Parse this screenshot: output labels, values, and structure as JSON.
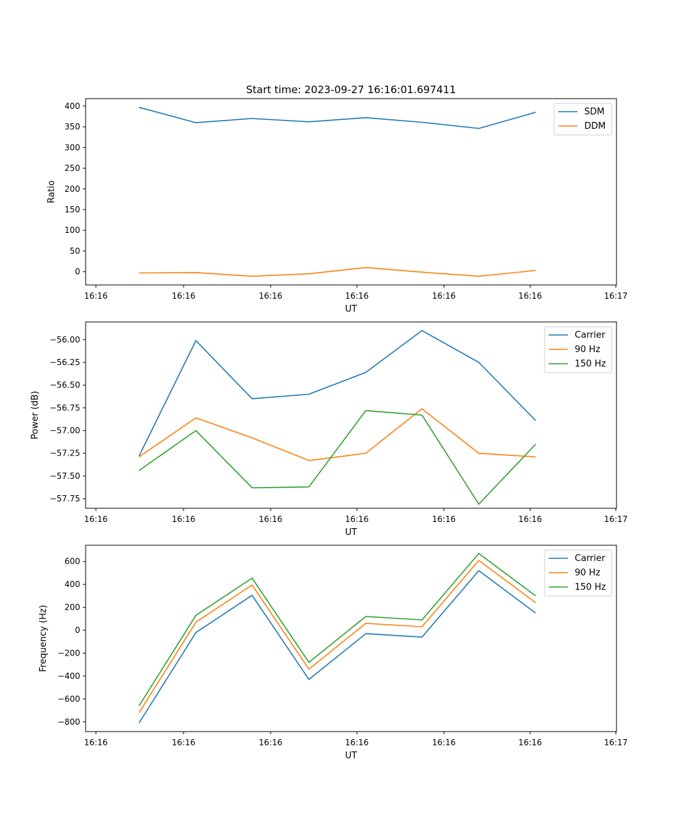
{
  "chart_data": [
    {
      "type": "line",
      "title": "Start time: 2023-09-27 16:16:01.697411",
      "xlabel": "UT",
      "ylabel": "Ratio",
      "x_ticks": [
        "16:16",
        "16:16",
        "16:16",
        "16:16",
        "16:16",
        "16:16",
        "16:16",
        "16:17"
      ],
      "y_ticks": [
        "0",
        "50",
        "100",
        "150",
        "200",
        "250",
        "300",
        "350",
        "400"
      ],
      "ylim": [
        -32,
        418
      ],
      "legend": "top-right",
      "series": [
        {
          "name": "SDM",
          "color": "#1f77b4",
          "values": [
            397,
            360,
            370,
            362,
            372,
            361,
            346,
            385
          ]
        },
        {
          "name": "DDM",
          "color": "#ff7f0e",
          "values": [
            -3,
            -2,
            -11,
            -5,
            10,
            -1,
            -11,
            3
          ]
        }
      ]
    },
    {
      "type": "line",
      "title": "",
      "xlabel": "UT",
      "ylabel": "Power (dB)",
      "x_ticks": [
        "16:16",
        "16:16",
        "16:16",
        "16:16",
        "16:16",
        "16:16",
        "16:16",
        "16:17"
      ],
      "y_ticks": [
        "−57.75",
        "−57.50",
        "−57.25",
        "−57.00",
        "−56.75",
        "−56.50",
        "−56.25",
        "−56.00"
      ],
      "ylim": [
        -57.855,
        -55.805
      ],
      "legend": "top-right",
      "series": [
        {
          "name": "Carrier",
          "color": "#1f77b4",
          "values": [
            -57.28,
            -56.01,
            -56.65,
            -56.6,
            -56.36,
            -55.9,
            -56.25,
            -56.89
          ]
        },
        {
          "name": "90 Hz",
          "color": "#ff7f0e",
          "values": [
            -57.29,
            -56.86,
            -57.08,
            -57.33,
            -57.25,
            -56.76,
            -57.25,
            -57.29
          ]
        },
        {
          "name": "150 Hz",
          "color": "#2ca02c",
          "values": [
            -57.44,
            -57.0,
            -57.63,
            -57.62,
            -56.78,
            -56.83,
            -57.81,
            -57.15
          ]
        }
      ]
    },
    {
      "type": "line",
      "title": "",
      "xlabel": "UT",
      "ylabel": "Frequency (Hz)",
      "x_ticks": [
        "16:16",
        "16:16",
        "16:16",
        "16:16",
        "16:16",
        "16:16",
        "16:16",
        "16:17"
      ],
      "y_ticks": [
        "−800",
        "−600",
        "−400",
        "−200",
        "0",
        "200",
        "400",
        "600"
      ],
      "ylim": [
        -885,
        742
      ],
      "legend": "top-right",
      "series": [
        {
          "name": "Carrier",
          "color": "#1f77b4",
          "values": [
            -810,
            -20,
            305,
            -430,
            -30,
            -60,
            520,
            150
          ]
        },
        {
          "name": "90 Hz",
          "color": "#ff7f0e",
          "values": [
            -720,
            70,
            395,
            -340,
            60,
            30,
            610,
            240
          ]
        },
        {
          "name": "150 Hz",
          "color": "#2ca02c",
          "values": [
            -660,
            130,
            455,
            -280,
            120,
            90,
            670,
            300
          ]
        }
      ]
    }
  ]
}
